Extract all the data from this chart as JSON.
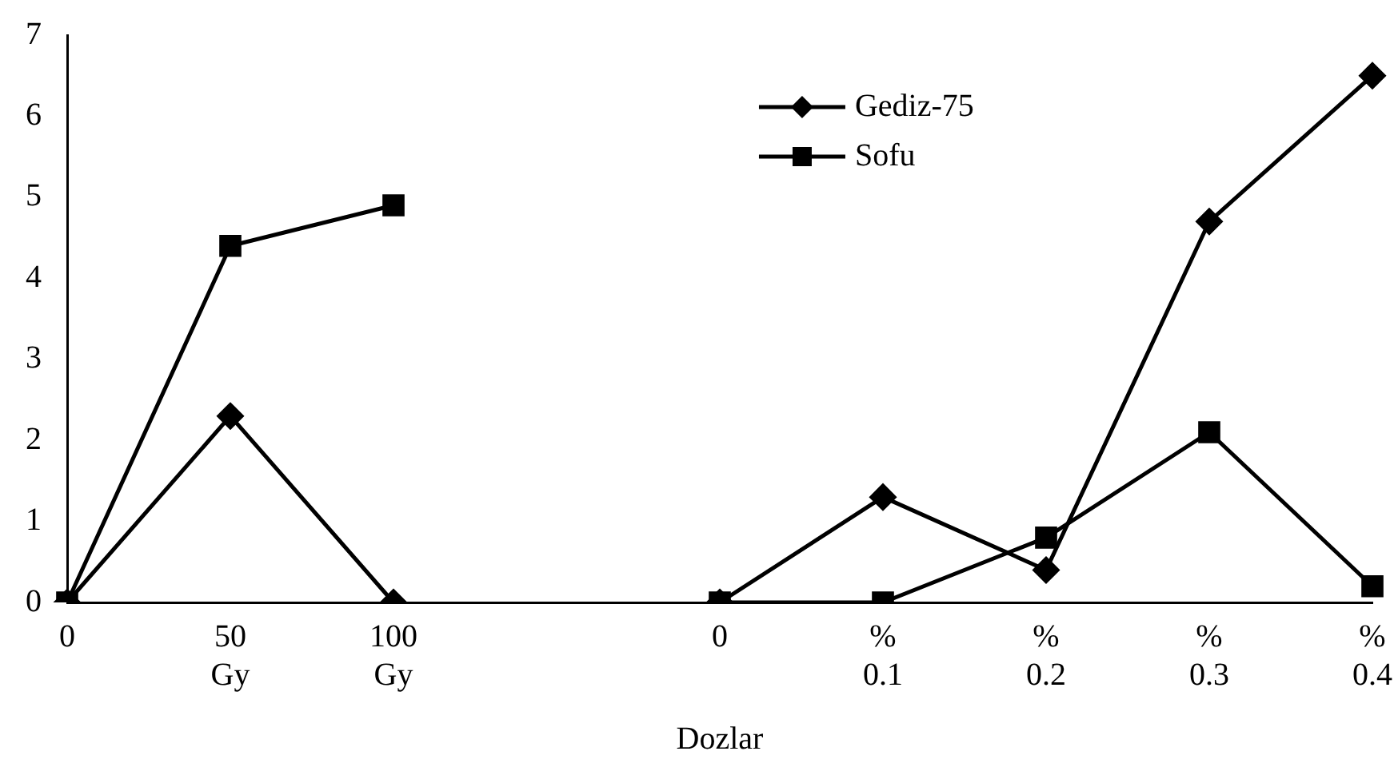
{
  "chart_data": {
    "type": "line",
    "xlabel": "Dozlar",
    "categories": [
      "0",
      "50\nGy",
      "100\nGy",
      null,
      "0",
      "%\n0.1",
      "%\n0.2",
      "%\n0.3",
      "%\n0.4"
    ],
    "series": [
      {
        "name": "Gediz-75",
        "color": "#000000",
        "marker": "diamond",
        "values": [
          0,
          2.3,
          0,
          null,
          0,
          1.3,
          0.4,
          4.7,
          6.5
        ]
      },
      {
        "name": "Sofu",
        "color": "#000000",
        "marker": "square",
        "values": [
          0,
          4.4,
          4.9,
          null,
          0,
          0,
          0.8,
          2.1,
          0.2
        ]
      }
    ],
    "ylim": [
      0,
      7
    ],
    "yticks": [
      0,
      1,
      2,
      3,
      4,
      5,
      6,
      7
    ],
    "grid": false,
    "legend": "top right",
    "line_style": "solid"
  }
}
